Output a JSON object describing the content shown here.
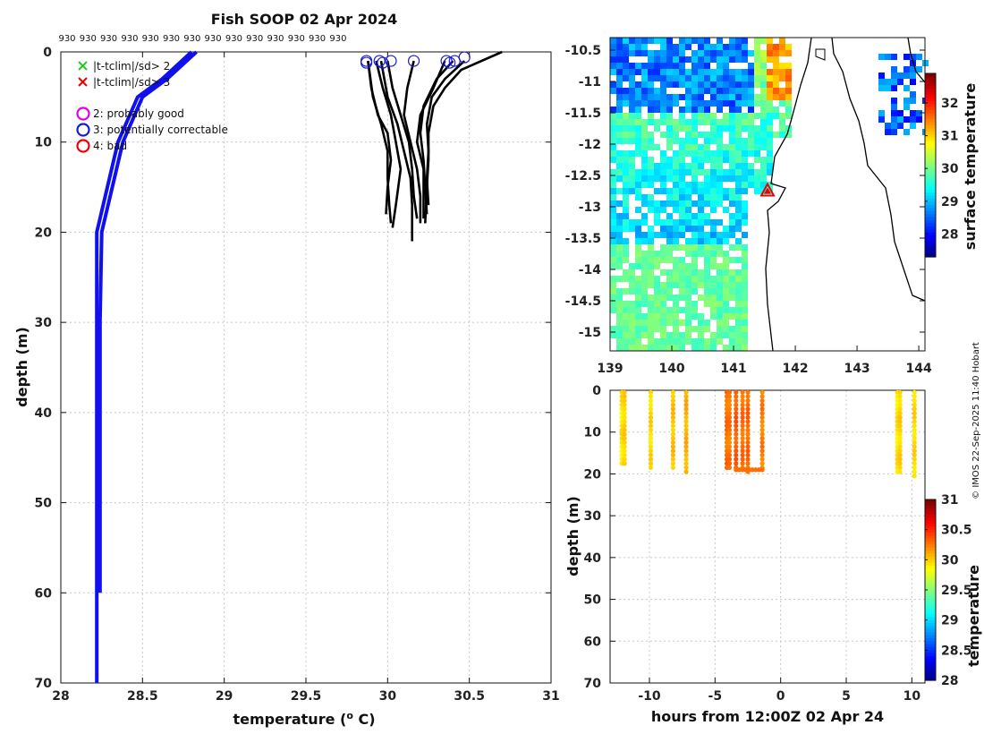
{
  "title": "Fish SOOP 02 Apr 2024",
  "copyright": "© IMOS 22-Sep-2025 11:40 Hobart",
  "colors": {
    "blue_profile": "#1010ee",
    "black_profile": "#000000",
    "good": "#e000e0",
    "correctable": "#1a1ad0",
    "bad": "#ee0000",
    "flag2": "#22cc22",
    "flag3": "#ee0000"
  },
  "chart_data": [
    {
      "id": "profile",
      "type": "line",
      "title": "Fish SOOP 02 Apr 2024",
      "xlabel": "temperature (",
      "xlabel_sup": "o",
      "xlabel_end": " C)",
      "ylabel": "depth (m)",
      "xlim": [
        28,
        31
      ],
      "ylim": [
        70,
        0
      ],
      "xticks": [
        "28",
        "28.5",
        "29",
        "29.5",
        "30",
        "30.5",
        "31"
      ],
      "yticks": [
        "0",
        "10",
        "20",
        "30",
        "40",
        "50",
        "60",
        "70"
      ],
      "top_labels": [
        "930",
        "930",
        "930",
        "930",
        "930",
        "930",
        "930",
        "930",
        "930",
        "930",
        "930",
        "930",
        "930",
        "930"
      ],
      "legend": [
        {
          "marker": "x",
          "color": "#22cc22",
          "label": "|t-tclim|/sd> 2"
        },
        {
          "marker": "x",
          "color": "#ee0000",
          "label": "|t-tclim|/sd> 3"
        },
        {
          "marker": "o",
          "color": "#e000e0",
          "label": "2: probably good"
        },
        {
          "marker": "o",
          "color": "#1a1ad0",
          "label": "3: potentially correctable"
        },
        {
          "marker": "o",
          "color": "#ee0000",
          "label": "4: bad"
        }
      ],
      "climatology": {
        "name": "climatology",
        "points": [
          [
            28.83,
            0
          ],
          [
            28.65,
            3
          ],
          [
            28.5,
            5
          ],
          [
            28.38,
            10
          ],
          [
            28.25,
            20
          ],
          [
            28.24,
            30
          ],
          [
            28.24,
            40
          ],
          [
            28.24,
            50
          ],
          [
            28.24,
            60
          ]
        ],
        "points_b": [
          [
            28.8,
            0
          ],
          [
            28.62,
            3
          ],
          [
            28.47,
            5
          ],
          [
            28.35,
            10
          ],
          [
            28.22,
            20
          ],
          [
            28.22,
            40
          ],
          [
            28.22,
            60
          ],
          [
            28.22,
            70
          ]
        ]
      },
      "profiles": [
        {
          "name": "p1",
          "points": [
            [
              29.88,
              1
            ],
            [
              29.9,
              4
            ],
            [
              29.94,
              7
            ],
            [
              30.0,
              9
            ],
            [
              30.02,
              12
            ],
            [
              30.0,
              15
            ],
            [
              29.99,
              18
            ]
          ]
        },
        {
          "name": "p2",
          "points": [
            [
              29.88,
              1
            ],
            [
              29.91,
              5
            ],
            [
              29.96,
              8
            ],
            [
              30.0,
              11
            ],
            [
              30.0,
              14
            ],
            [
              30.01,
              17
            ],
            [
              30.02,
              19
            ]
          ]
        },
        {
          "name": "p3",
          "points": [
            [
              29.93,
              1
            ],
            [
              29.97,
              4
            ],
            [
              30.02,
              7
            ],
            [
              30.05,
              10
            ],
            [
              30.08,
              13
            ],
            [
              30.05,
              17
            ],
            [
              30.03,
              19.5
            ]
          ]
        },
        {
          "name": "p4",
          "points": [
            [
              29.96,
              1
            ],
            [
              30.0,
              5
            ],
            [
              30.06,
              8
            ],
            [
              30.1,
              11
            ],
            [
              30.14,
              14
            ],
            [
              30.15,
              17
            ],
            [
              30.15,
              21
            ]
          ]
        },
        {
          "name": "p5",
          "points": [
            [
              30.0,
              1
            ],
            [
              30.03,
              4
            ],
            [
              30.08,
              7
            ],
            [
              30.13,
              10
            ],
            [
              30.15,
              13
            ],
            [
              30.16,
              16
            ],
            [
              30.18,
              18.5
            ]
          ]
        },
        {
          "name": "p6",
          "points": [
            [
              30.16,
              1
            ],
            [
              30.12,
              4
            ],
            [
              30.1,
              7
            ],
            [
              30.14,
              10
            ],
            [
              30.18,
              13
            ],
            [
              30.2,
              16
            ],
            [
              30.2,
              19
            ]
          ]
        },
        {
          "name": "p7",
          "points": [
            [
              30.35,
              1
            ],
            [
              30.28,
              4
            ],
            [
              30.2,
              7
            ],
            [
              30.18,
              10
            ],
            [
              30.22,
              13
            ],
            [
              30.22,
              16
            ],
            [
              30.22,
              18.5
            ]
          ]
        },
        {
          "name": "p8",
          "points": [
            [
              30.4,
              1
            ],
            [
              30.3,
              3
            ],
            [
              30.22,
              6
            ],
            [
              30.2,
              9
            ],
            [
              30.22,
              12
            ],
            [
              30.23,
              15
            ],
            [
              30.24,
              18
            ]
          ]
        },
        {
          "name": "p9",
          "points": [
            [
              30.47,
              1
            ],
            [
              30.35,
              3
            ],
            [
              30.27,
              5
            ],
            [
              30.24,
              8
            ],
            [
              30.25,
              11
            ],
            [
              30.24,
              14
            ],
            [
              30.25,
              17
            ]
          ]
        },
        {
          "name": "p10",
          "points": [
            [
              30.7,
              0
            ],
            [
              30.45,
              2
            ],
            [
              30.35,
              4
            ],
            [
              30.28,
              6
            ],
            [
              30.25,
              9
            ],
            [
              30.25,
              12
            ],
            [
              30.24,
              15
            ],
            [
              30.23,
              19
            ]
          ]
        }
      ],
      "flag_markers": [
        [
          29.87,
          1
        ],
        [
          29.87,
          1.2
        ],
        [
          29.95,
          1
        ],
        [
          29.97,
          1.2
        ],
        [
          30.02,
          1
        ],
        [
          30.16,
          1
        ],
        [
          30.36,
          1
        ],
        [
          30.38,
          1.2
        ],
        [
          30.41,
          1
        ],
        [
          30.47,
          0.6
        ]
      ]
    },
    {
      "id": "map",
      "type": "heatmap",
      "colorbar_label": "surface temperature",
      "colorbar_ticks": [
        "28",
        "29",
        "30",
        "31",
        "32"
      ],
      "colorbar_range": [
        27.3,
        32.9
      ],
      "xlim": [
        139,
        144.1
      ],
      "ylim": [
        -15.3,
        -10.3
      ],
      "xticks": [
        "139",
        "140",
        "141",
        "142",
        "143",
        "144"
      ],
      "yticks": [
        "-10.5",
        "-11",
        "-11.5",
        "-12",
        "-12.5",
        "-13",
        "-13.5",
        "-14",
        "-14.5",
        "-15"
      ],
      "marker": {
        "lon": 141.55,
        "lat": -12.75,
        "shape": "triangle",
        "color": "#ee0000"
      }
    },
    {
      "id": "timeseries",
      "type": "scatter",
      "xlabel": "hours from 12:00Z 02 Apr 24",
      "ylabel": "depth (m)",
      "xlim": [
        -13,
        11
      ],
      "ylim": [
        70,
        0
      ],
      "xticks": [
        "-10",
        "-5",
        "0",
        "5",
        "10"
      ],
      "yticks": [
        "0",
        "10",
        "20",
        "30",
        "40",
        "50",
        "60",
        "70"
      ],
      "colorbar_label": "temperature",
      "colorbar_ticks": [
        "28",
        "28.5",
        "29",
        "29.5",
        "30",
        "30.5",
        "31"
      ],
      "colorbar_range": [
        28,
        31
      ],
      "casts": [
        {
          "hour": -12.1,
          "max_depth": 18,
          "temp": 29.95
        },
        {
          "hour": -11.9,
          "max_depth": 17.5,
          "temp": 30.0
        },
        {
          "hour": -9.9,
          "max_depth": 19,
          "temp": 29.98
        },
        {
          "hour": -8.2,
          "max_depth": 19,
          "temp": 30.05
        },
        {
          "hour": -7.2,
          "max_depth": 19.5,
          "temp": 30.1
        },
        {
          "hour": -4.1,
          "max_depth": 19,
          "temp": 30.3
        },
        {
          "hour": -3.9,
          "max_depth": 19,
          "temp": 30.28
        },
        {
          "hour": -3.4,
          "max_depth": 19,
          "temp": 30.35
        },
        {
          "hour": -2.9,
          "max_depth": 19,
          "temp": 30.3
        },
        {
          "hour": -2.5,
          "max_depth": 19.5,
          "temp": 30.32
        },
        {
          "hour": -1.4,
          "max_depth": 18.5,
          "temp": 30.25
        },
        {
          "hour": 8.9,
          "max_depth": 20,
          "temp": 29.95
        },
        {
          "hour": 9.1,
          "max_depth": 19.5,
          "temp": 30.0
        },
        {
          "hour": 10.2,
          "max_depth": 20.5,
          "temp": 29.98
        }
      ]
    }
  ]
}
